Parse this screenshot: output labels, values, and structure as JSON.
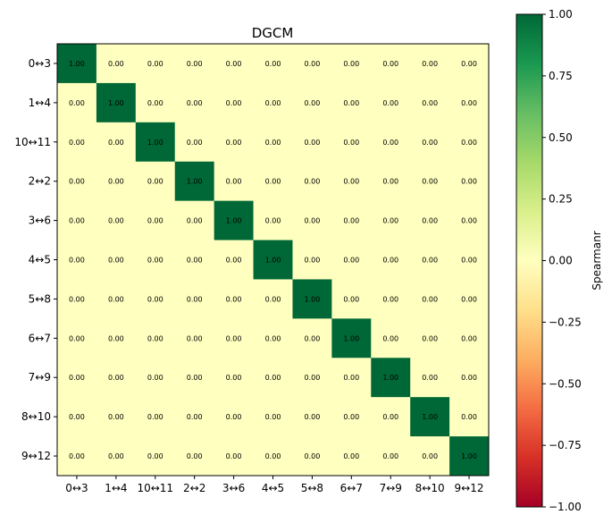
{
  "chart_data": {
    "type": "heatmap",
    "title": "DGCM",
    "x_categories": [
      "0↔3",
      "1↔4",
      "10↔11",
      "2↔2",
      "3↔6",
      "4↔5",
      "5↔8",
      "6↔7",
      "7↔9",
      "8↔10",
      "9↔12"
    ],
    "y_categories": [
      "0↔3",
      "1↔4",
      "10↔11",
      "2↔2",
      "3↔6",
      "4↔5",
      "5↔8",
      "6↔7",
      "7↔9",
      "8↔10",
      "9↔12"
    ],
    "values": [
      [
        1,
        0,
        0,
        0,
        0,
        0,
        0,
        0,
        0,
        0,
        0
      ],
      [
        0,
        1,
        0,
        0,
        0,
        0,
        0,
        0,
        0,
        0,
        0
      ],
      [
        0,
        0,
        1,
        0,
        0,
        0,
        0,
        0,
        0,
        0,
        0
      ],
      [
        0,
        0,
        0,
        1,
        0,
        0,
        0,
        0,
        0,
        0,
        0
      ],
      [
        0,
        0,
        0,
        0,
        1,
        0,
        0,
        0,
        0,
        0,
        0
      ],
      [
        0,
        0,
        0,
        0,
        0,
        1,
        0,
        0,
        0,
        0,
        0
      ],
      [
        0,
        0,
        0,
        0,
        0,
        0,
        1,
        0,
        0,
        0,
        0
      ],
      [
        0,
        0,
        0,
        0,
        0,
        0,
        0,
        1,
        0,
        0,
        0
      ],
      [
        0,
        0,
        0,
        0,
        0,
        0,
        0,
        0,
        1,
        0,
        0
      ],
      [
        0,
        0,
        0,
        0,
        0,
        0,
        0,
        0,
        0,
        1,
        0
      ],
      [
        0,
        0,
        0,
        0,
        0,
        0,
        0,
        0,
        0,
        0,
        1
      ]
    ],
    "value_format_decimals": 2,
    "colormap": "RdYlGn",
    "colorbar": {
      "label": "Spearmanr",
      "range": [
        -1,
        1
      ],
      "ticks": [
        1.0,
        0.75,
        0.5,
        0.25,
        0.0,
        -0.25,
        -0.5,
        -0.75,
        -1.0
      ],
      "tick_labels": [
        "1.00",
        "0.75",
        "0.50",
        "0.25",
        "0.00",
        "−0.25",
        "−0.50",
        "−0.75",
        "−1.00"
      ]
    },
    "grid": false
  }
}
